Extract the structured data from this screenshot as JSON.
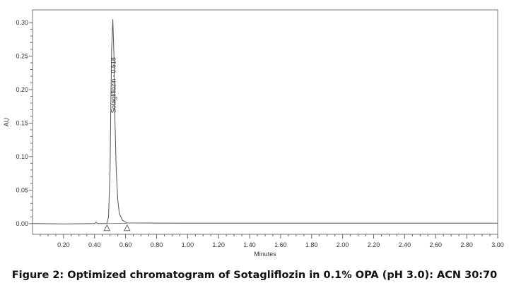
{
  "chart_data": {
    "type": "line",
    "title": "",
    "xlabel": "Minutes",
    "ylabel": "AU",
    "xlim": [
      0,
      3.0
    ],
    "ylim": [
      -0.016,
      0.319
    ],
    "x_ticks": [
      "0.20",
      "0.40",
      "0.60",
      "0.80",
      "1.00",
      "1.20",
      "1.40",
      "1.60",
      "1.80",
      "2.00",
      "2.20",
      "2.40",
      "2.60",
      "2.80",
      "3.00"
    ],
    "y_ticks": [
      "0.00",
      "0.05",
      "0.10",
      "0.15",
      "0.20",
      "0.25",
      "0.30"
    ],
    "grid": false,
    "series": [
      {
        "x": [
          0,
          0.2,
          0.4,
          0.41,
          0.42,
          0.48,
          0.49,
          0.5,
          0.505,
          0.51,
          0.518,
          0.525,
          0.53,
          0.54,
          0.55,
          0.56,
          0.58,
          0.61,
          1.0,
          2.0,
          3.0
        ],
        "y": [
          0,
          -0.0005,
          0,
          0.002,
          0,
          0,
          0.01,
          0.08,
          0.18,
          0.26,
          0.305,
          0.25,
          0.17,
          0.08,
          0.035,
          0.015,
          0.005,
          0.001,
          0.0005,
          0.0005,
          0.0005
        ]
      }
    ],
    "peaks": [
      {
        "label": "Sotagliflozin - 0.518",
        "retention_time": 0.518,
        "start": 0.48,
        "end": 0.61
      }
    ],
    "line_color": "#555555"
  },
  "caption": "Figure 2: Optimized chromatogram of Sotagliflozin in 0.1% OPA (pH 3.0): ACN 30:70"
}
